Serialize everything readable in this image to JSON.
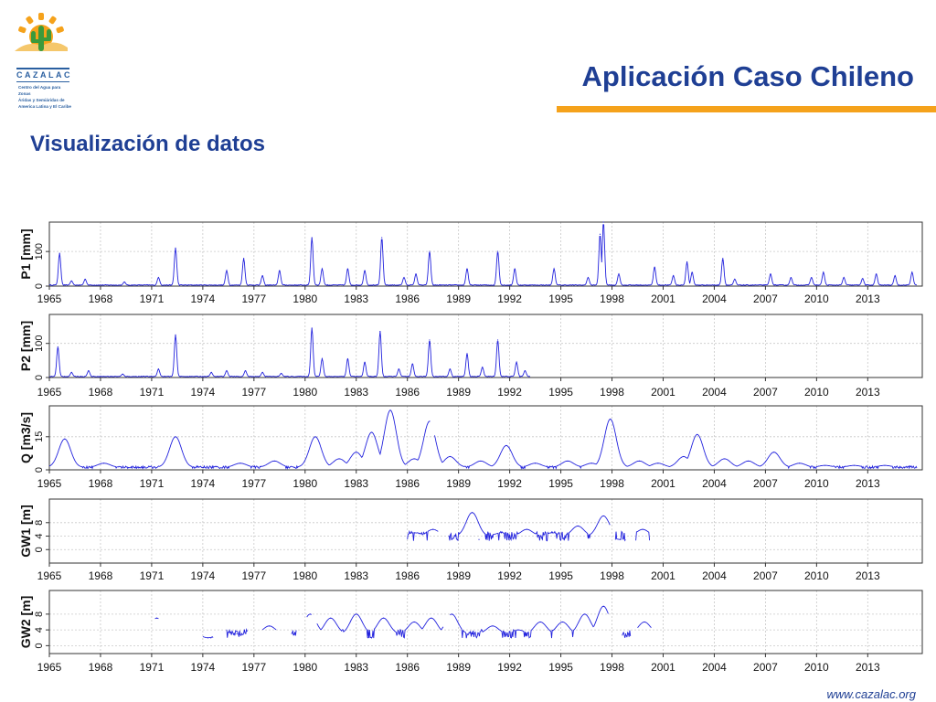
{
  "header": {
    "title": "Aplicación Caso Chileno",
    "subtitle": "Visualización de datos",
    "footer_url": "www.cazalac.org",
    "logo": {
      "name": "CAZALAC",
      "subtitle_lines": [
        "Centro del Agua para Zonas",
        "Áridas y Semiáridas de",
        "America Latina y El Caribe"
      ],
      "colors": {
        "sun": "#f5a21b",
        "cactus": "#3a9a3c",
        "hills": "#f5c76b",
        "text": "#2a5fa0"
      }
    }
  },
  "colors": {
    "title": "#1f3f94",
    "accent_bar": "#f5a21b",
    "series": "#2222dd",
    "grid": "#c8c8c8"
  },
  "chart_data": [
    {
      "type": "line",
      "ylabel": "P1 [mm]",
      "yticks": [
        0,
        100
      ],
      "ylim": [
        0,
        185
      ],
      "xlim": [
        1965,
        2016.2
      ],
      "xticks": [
        1965,
        1968,
        1971,
        1974,
        1977,
        1980,
        1983,
        1986,
        1989,
        1992,
        1995,
        1998,
        2001,
        2004,
        2007,
        2010,
        2013
      ],
      "grid": true,
      "segments": [
        [
          1965,
          2015.9
        ]
      ],
      "peaks": [
        [
          1965.6,
          95
        ],
        [
          1966.3,
          15
        ],
        [
          1967.1,
          20
        ],
        [
          1969.4,
          12
        ],
        [
          1971.4,
          25
        ],
        [
          1972.4,
          110
        ],
        [
          1975.4,
          45
        ],
        [
          1976.4,
          80
        ],
        [
          1977.5,
          30
        ],
        [
          1978.5,
          45
        ],
        [
          1980.4,
          140
        ],
        [
          1981.0,
          50
        ],
        [
          1982.5,
          50
        ],
        [
          1983.5,
          45
        ],
        [
          1984.5,
          140
        ],
        [
          1985.8,
          25
        ],
        [
          1986.5,
          35
        ],
        [
          1987.3,
          100
        ],
        [
          1989.5,
          50
        ],
        [
          1991.3,
          100
        ],
        [
          1992.3,
          50
        ],
        [
          1994.6,
          50
        ],
        [
          1996.6,
          25
        ],
        [
          1997.3,
          150
        ],
        [
          1997.5,
          185
        ],
        [
          1998.4,
          35
        ],
        [
          2000.5,
          55
        ],
        [
          2001.6,
          30
        ],
        [
          2002.4,
          70
        ],
        [
          2002.7,
          40
        ],
        [
          2004.5,
          80
        ],
        [
          2005.2,
          20
        ],
        [
          2007.3,
          35
        ],
        [
          2008.5,
          25
        ],
        [
          2009.7,
          25
        ],
        [
          2010.4,
          40
        ],
        [
          2011.6,
          25
        ],
        [
          2012.7,
          22
        ],
        [
          2013.5,
          35
        ],
        [
          2014.6,
          30
        ],
        [
          2015.6,
          40
        ]
      ],
      "baseline": 3
    },
    {
      "type": "line",
      "ylabel": "P2 [mm]",
      "yticks": [
        0,
        100
      ],
      "ylim": [
        0,
        185
      ],
      "xlim": [
        1965,
        2016.2
      ],
      "xticks": [
        1965,
        1968,
        1971,
        1974,
        1977,
        1980,
        1983,
        1986,
        1989,
        1992,
        1995,
        1998,
        2001,
        2004,
        2007,
        2010,
        2013
      ],
      "grid": true,
      "segments": [
        [
          1965,
          1993.2
        ]
      ],
      "peaks": [
        [
          1965.5,
          90
        ],
        [
          1966.3,
          15
        ],
        [
          1967.3,
          20
        ],
        [
          1969.3,
          10
        ],
        [
          1971.4,
          25
        ],
        [
          1972.4,
          125
        ],
        [
          1974.5,
          15
        ],
        [
          1975.4,
          20
        ],
        [
          1976.5,
          20
        ],
        [
          1977.5,
          15
        ],
        [
          1978.6,
          12
        ],
        [
          1980.4,
          145
        ],
        [
          1981.0,
          55
        ],
        [
          1982.5,
          55
        ],
        [
          1983.5,
          45
        ],
        [
          1984.4,
          135
        ],
        [
          1985.5,
          25
        ],
        [
          1986.3,
          40
        ],
        [
          1987.3,
          110
        ],
        [
          1988.5,
          25
        ],
        [
          1989.5,
          70
        ],
        [
          1990.4,
          30
        ],
        [
          1991.3,
          110
        ],
        [
          1992.4,
          45
        ],
        [
          1992.9,
          20
        ]
      ],
      "baseline": 3
    },
    {
      "type": "line",
      "ylabel": "Q [m3/s]",
      "yticks": [
        0,
        15
      ],
      "ylim": [
        0,
        29
      ],
      "xlim": [
        1965,
        2016.2
      ],
      "xticks": [
        1965,
        1968,
        1971,
        1974,
        1977,
        1980,
        1983,
        1986,
        1989,
        1992,
        1995,
        1998,
        2001,
        2004,
        2007,
        2010,
        2013
      ],
      "grid": true,
      "segments": [
        [
          1965,
          1987.3
        ],
        [
          1987.6,
          2015.9
        ]
      ],
      "peaks": [
        [
          1965.9,
          14
        ],
        [
          1968.2,
          3
        ],
        [
          1972.4,
          15
        ],
        [
          1976.2,
          3
        ],
        [
          1978.2,
          4
        ],
        [
          1980.6,
          15
        ],
        [
          1982.0,
          5
        ],
        [
          1983.0,
          8
        ],
        [
          1983.9,
          17
        ],
        [
          1985.0,
          27
        ],
        [
          1986.4,
          5
        ],
        [
          1987.3,
          22
        ],
        [
          1988.5,
          6
        ],
        [
          1990.3,
          4
        ],
        [
          1991.8,
          11
        ],
        [
          1993.5,
          3
        ],
        [
          1995.4,
          4
        ],
        [
          1996.8,
          3
        ],
        [
          1997.9,
          23
        ],
        [
          1999.6,
          4
        ],
        [
          2000.7,
          3
        ],
        [
          2002.2,
          6
        ],
        [
          2003.0,
          16
        ],
        [
          2004.6,
          5
        ],
        [
          2006.0,
          4
        ],
        [
          2007.5,
          8
        ],
        [
          2009.0,
          3
        ],
        [
          2010.5,
          2
        ],
        [
          2012.2,
          2
        ],
        [
          2014.0,
          2
        ]
      ],
      "baseline": 1.2
    },
    {
      "type": "line",
      "ylabel": "GW1 [m]",
      "yticks": [
        0,
        4,
        8
      ],
      "ylim": [
        -4,
        15
      ],
      "xlim": [
        1965,
        2016.2
      ],
      "xticks": [
        1965,
        1968,
        1971,
        1974,
        1977,
        1980,
        1983,
        1986,
        1989,
        1992,
        1995,
        1998,
        2001,
        2004,
        2007,
        2010,
        2013
      ],
      "grid": true,
      "segments": [
        [
          1986.0,
          1987.8
        ],
        [
          1988.4,
          1997.9
        ],
        [
          1998.2,
          1998.8
        ],
        [
          1999.4,
          2000.2
        ]
      ],
      "peaks": [
        [
          1986.4,
          5
        ],
        [
          1987.5,
          6
        ],
        [
          1988.8,
          4
        ],
        [
          1989.8,
          11
        ],
        [
          1990.2,
          3
        ],
        [
          1991.5,
          5
        ],
        [
          1993.0,
          6
        ],
        [
          1994.5,
          5
        ],
        [
          1996.0,
          7
        ],
        [
          1997.5,
          10
        ],
        [
          1998.5,
          3
        ],
        [
          1999.8,
          6
        ]
      ],
      "baseline": 4
    },
    {
      "type": "line",
      "ylabel": "GW2 [m]",
      "yticks": [
        0,
        4,
        8
      ],
      "ylim": [
        -2,
        14
      ],
      "xlim": [
        1965,
        2016.2
      ],
      "xticks": [
        1965,
        1968,
        1971,
        1974,
        1977,
        1980,
        1983,
        1986,
        1989,
        1992,
        1995,
        1998,
        2001,
        2004,
        2007,
        2010,
        2013
      ],
      "grid": true,
      "segments": [
        [
          1971.2,
          1971.4
        ],
        [
          1974.0,
          1974.6
        ],
        [
          1975.4,
          1976.6
        ],
        [
          1977.5,
          1978.3
        ],
        [
          1979.2,
          1979.5
        ],
        [
          1980.1,
          1980.4
        ],
        [
          1980.7,
          1988.1
        ],
        [
          1988.5,
          1997.8
        ],
        [
          1998.6,
          1999.1
        ],
        [
          1999.5,
          2000.3
        ]
      ],
      "peaks": [
        [
          1971.3,
          7
        ],
        [
          1974.3,
          2
        ],
        [
          1976.0,
          3
        ],
        [
          1977.9,
          5
        ],
        [
          1979.3,
          3
        ],
        [
          1980.3,
          8
        ],
        [
          1981.5,
          7
        ],
        [
          1983.0,
          8
        ],
        [
          1983.7,
          2
        ],
        [
          1984.6,
          7
        ],
        [
          1985.5,
          3
        ],
        [
          1986.4,
          6
        ],
        [
          1987.4,
          7
        ],
        [
          1988.6,
          8
        ],
        [
          1989.5,
          3
        ],
        [
          1991.0,
          5
        ],
        [
          1992.5,
          4
        ],
        [
          1993.8,
          6
        ],
        [
          1995.1,
          6
        ],
        [
          1996.4,
          8
        ],
        [
          1997.5,
          10
        ],
        [
          1998.8,
          3
        ],
        [
          1999.9,
          6
        ]
      ],
      "baseline": 3
    }
  ]
}
